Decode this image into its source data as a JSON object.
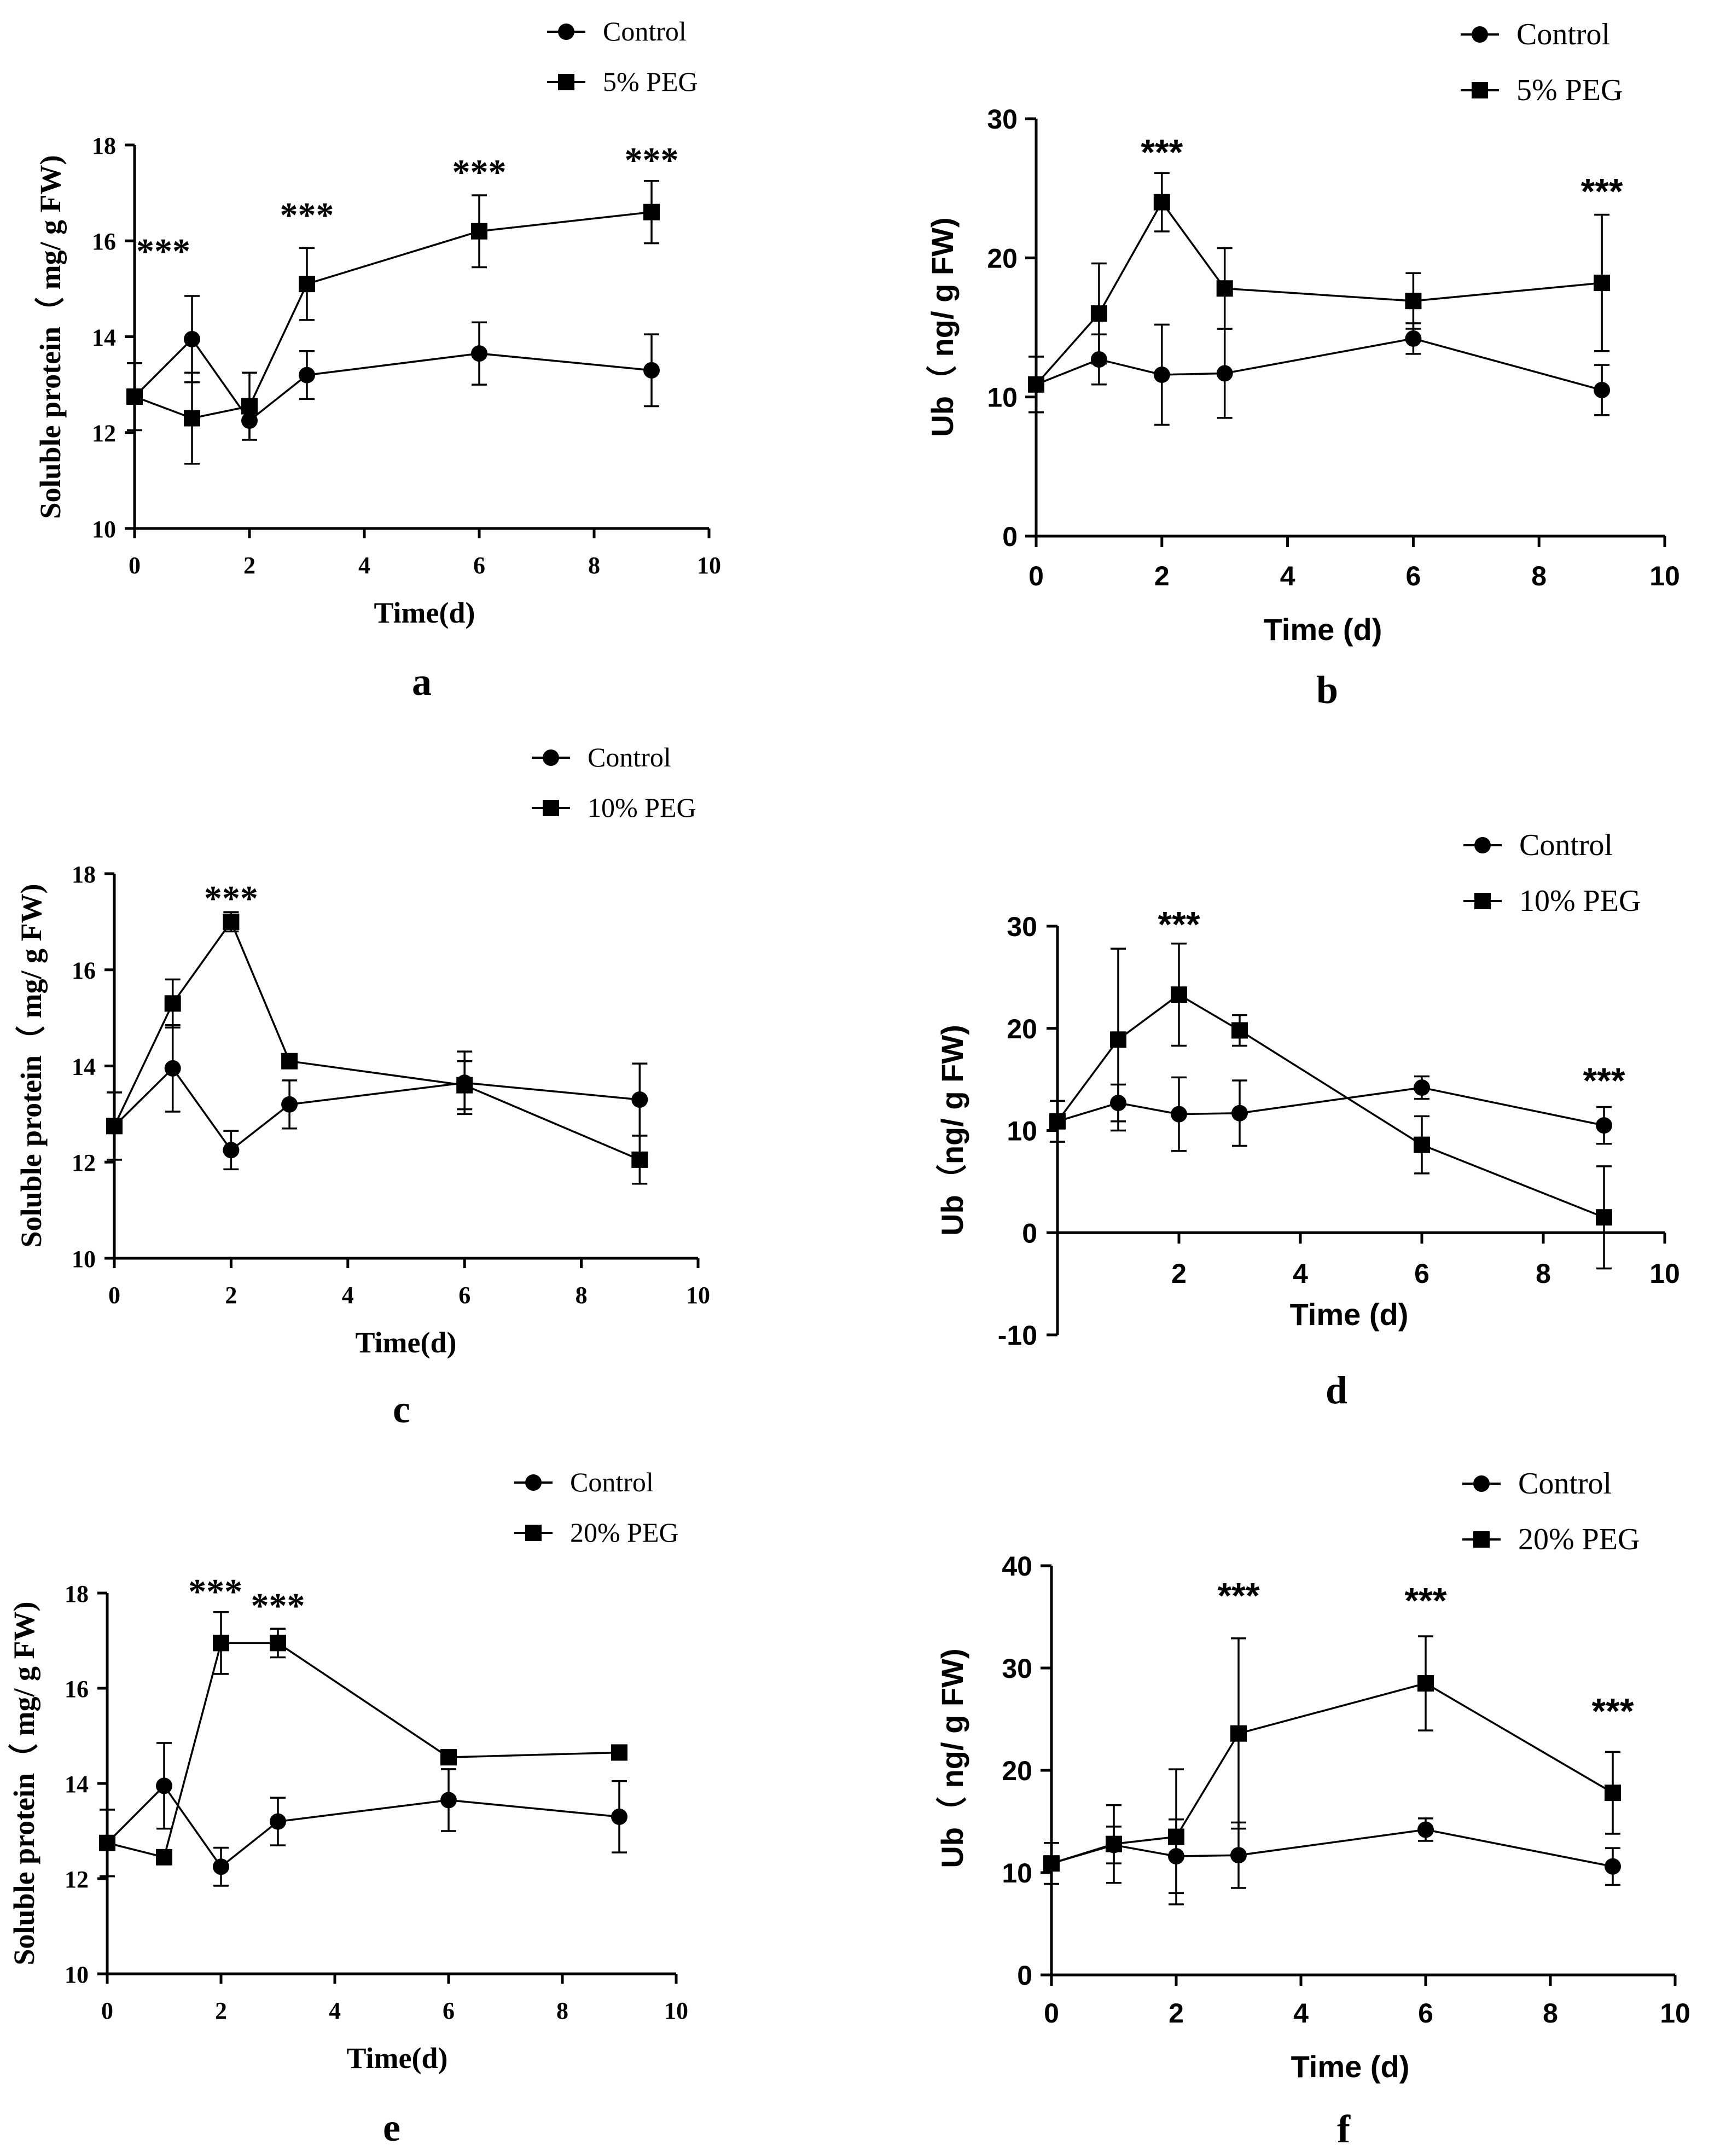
{
  "chart_data": [
    {
      "panel": "a",
      "type": "line",
      "style": "serif",
      "title": "",
      "xlabel": "Time(d)",
      "ylabel": "Soluble protein（ mg/ g FW)",
      "xlim": [
        0,
        10
      ],
      "ylim": [
        10,
        18
      ],
      "xticks": [
        "0",
        "2",
        "4",
        "6",
        "8",
        "10"
      ],
      "yticks": [
        "10",
        "12",
        "14",
        "16",
        "18"
      ],
      "x": [
        0,
        1,
        2,
        3,
        6,
        9
      ],
      "series": [
        {
          "name": "Control",
          "marker": "circle",
          "values": [
            12.75,
            13.95,
            12.25,
            13.2,
            13.65,
            13.3
          ],
          "errors": [
            0.7,
            0.9,
            0.4,
            0.5,
            0.65,
            0.75
          ]
        },
        {
          "name": "5% PEG",
          "marker": "square",
          "values": [
            12.75,
            12.3,
            12.55,
            15.1,
            16.2,
            16.6
          ],
          "errors": [
            0.7,
            0.95,
            0.7,
            0.75,
            0.75,
            0.65
          ]
        }
      ],
      "annotations": [
        {
          "x": 0.5,
          "y": 15.8,
          "text": "***"
        },
        {
          "x": 3,
          "y": 16.55,
          "text": "***"
        },
        {
          "x": 6,
          "y": 17.45,
          "text": "***"
        },
        {
          "x": 9,
          "y": 17.7,
          "text": "***"
        }
      ],
      "legend_position": "top-right"
    },
    {
      "panel": "b",
      "type": "line",
      "style": "sans",
      "title": "",
      "xlabel": "Time (d)",
      "ylabel": "Ub（ ng/ g FW)",
      "xlim": [
        0,
        10
      ],
      "ylim": [
        0,
        30
      ],
      "xticks": [
        "0",
        "2",
        "4",
        "6",
        "8",
        "10"
      ],
      "yticks": [
        "0",
        "10",
        "20",
        "30"
      ],
      "x": [
        0,
        1,
        2,
        3,
        6,
        9
      ],
      "series": [
        {
          "name": "Control",
          "marker": "circle",
          "values": [
            10.9,
            12.7,
            11.6,
            11.7,
            14.2,
            10.5
          ],
          "errors": [
            2.0,
            1.8,
            3.6,
            3.2,
            1.1,
            1.8
          ]
        },
        {
          "name": "5% PEG",
          "marker": "square",
          "values": [
            10.9,
            16.0,
            24.0,
            17.8,
            16.9,
            18.2
          ],
          "errors": [
            2.0,
            3.6,
            2.1,
            2.9,
            2.0,
            4.9
          ]
        }
      ],
      "annotations": [
        {
          "x": 2,
          "y": 27.6,
          "text": "***"
        },
        {
          "x": 9,
          "y": 24.8,
          "text": "***"
        }
      ],
      "legend_position": "top-right"
    },
    {
      "panel": "c",
      "type": "line",
      "style": "serif",
      "title": "",
      "xlabel": "Time(d)",
      "ylabel": "Soluble protein（ mg/ g FW)",
      "xlim": [
        0,
        10
      ],
      "ylim": [
        10,
        18
      ],
      "xticks": [
        "0",
        "2",
        "4",
        "6",
        "8",
        "10"
      ],
      "yticks": [
        "10",
        "12",
        "14",
        "16",
        "18"
      ],
      "x": [
        0,
        1,
        2,
        3,
        6,
        9
      ],
      "series": [
        {
          "name": "Control",
          "marker": "circle",
          "values": [
            12.75,
            13.95,
            12.25,
            13.2,
            13.65,
            13.3
          ],
          "errors": [
            0.7,
            0.9,
            0.4,
            0.5,
            0.65,
            0.75
          ]
        },
        {
          "name": "10% PEG",
          "marker": "square",
          "values": [
            12.75,
            15.3,
            17.0,
            14.1,
            13.6,
            12.05
          ],
          "errors": [
            0.7,
            0.5,
            0.2,
            0.05,
            0.5,
            0.5
          ]
        }
      ],
      "annotations": [
        {
          "x": 2,
          "y": 17.5,
          "text": "***"
        }
      ],
      "legend_position": "top-right"
    },
    {
      "panel": "d",
      "type": "line",
      "style": "sans",
      "title": "",
      "xlabel": "Time (d)",
      "ylabel": "Ub（ng/ g FW)",
      "xlim": [
        0,
        10
      ],
      "ylim": [
        -10,
        30
      ],
      "xticks": [
        "2",
        "4",
        "6",
        "8",
        "10"
      ],
      "yticks": [
        "-10",
        "0",
        "10",
        "20",
        "30"
      ],
      "x": [
        0,
        1,
        2,
        3,
        6,
        9
      ],
      "series": [
        {
          "name": "Control",
          "marker": "circle",
          "values": [
            10.9,
            12.7,
            11.6,
            11.7,
            14.2,
            10.5
          ],
          "errors": [
            2.0,
            1.8,
            3.6,
            3.2,
            1.1,
            1.8
          ]
        },
        {
          "name": "10% PEG",
          "marker": "square",
          "values": [
            10.9,
            18.9,
            23.3,
            19.8,
            8.6,
            1.5
          ],
          "errors": [
            2.0,
            8.9,
            5.0,
            1.5,
            2.8,
            5.0
          ]
        }
      ],
      "annotations": [
        {
          "x": 2,
          "y": 30.2,
          "text": "***"
        },
        {
          "x": 9,
          "y": 14.9,
          "text": "***"
        }
      ],
      "legend_position": "top-right"
    },
    {
      "panel": "e",
      "type": "line",
      "style": "serif",
      "title": "",
      "xlabel": "Time(d)",
      "ylabel": "Soluble protein（ mg/ g FW)",
      "xlim": [
        0,
        10
      ],
      "ylim": [
        10,
        18
      ],
      "xticks": [
        "0",
        "2",
        "4",
        "6",
        "8",
        "10"
      ],
      "yticks": [
        "10",
        "12",
        "14",
        "16",
        "18"
      ],
      "x": [
        0,
        1,
        2,
        3,
        6,
        9
      ],
      "series": [
        {
          "name": "Control",
          "marker": "circle",
          "values": [
            12.75,
            13.95,
            12.25,
            13.2,
            13.65,
            13.3
          ],
          "errors": [
            0.7,
            0.9,
            0.4,
            0.5,
            0.65,
            0.75
          ]
        },
        {
          "name": "20% PEG",
          "marker": "square",
          "values": [
            12.75,
            12.45,
            16.95,
            16.95,
            14.55,
            14.65
          ],
          "errors": [
            0.7,
            0.05,
            0.65,
            0.3,
            0.15,
            0.05
          ]
        }
      ],
      "annotations": [
        {
          "x": 1.9,
          "y": 18.05,
          "text": "***"
        },
        {
          "x": 3.0,
          "y": 17.75,
          "text": "***"
        }
      ],
      "legend_position": "top-right"
    },
    {
      "panel": "f",
      "type": "line",
      "style": "sans",
      "title": "",
      "xlabel": "Time (d)",
      "ylabel": "Ub（ ng/ g FW)",
      "xlim": [
        0,
        10
      ],
      "ylim": [
        0,
        40
      ],
      "xticks": [
        "0",
        "2",
        "4",
        "6",
        "8",
        "10"
      ],
      "yticks": [
        "0",
        "10",
        "20",
        "30",
        "40"
      ],
      "x": [
        0,
        1,
        2,
        3,
        6,
        9
      ],
      "series": [
        {
          "name": "Control",
          "marker": "circle",
          "values": [
            10.9,
            12.7,
            11.6,
            11.7,
            14.2,
            10.6
          ],
          "errors": [
            2.0,
            1.8,
            3.6,
            3.2,
            1.1,
            1.8
          ]
        },
        {
          "name": "20% PEG",
          "marker": "square",
          "values": [
            10.9,
            12.8,
            13.5,
            23.6,
            28.5,
            17.8
          ],
          "errors": [
            2.0,
            3.8,
            6.6,
            9.3,
            4.6,
            4.0
          ]
        }
      ],
      "annotations": [
        {
          "x": 3,
          "y": 37.1,
          "text": "***"
        },
        {
          "x": 6,
          "y": 36.6,
          "text": "***"
        },
        {
          "x": 9,
          "y": 25.8,
          "text": "***"
        }
      ],
      "legend_position": "top-right"
    }
  ]
}
